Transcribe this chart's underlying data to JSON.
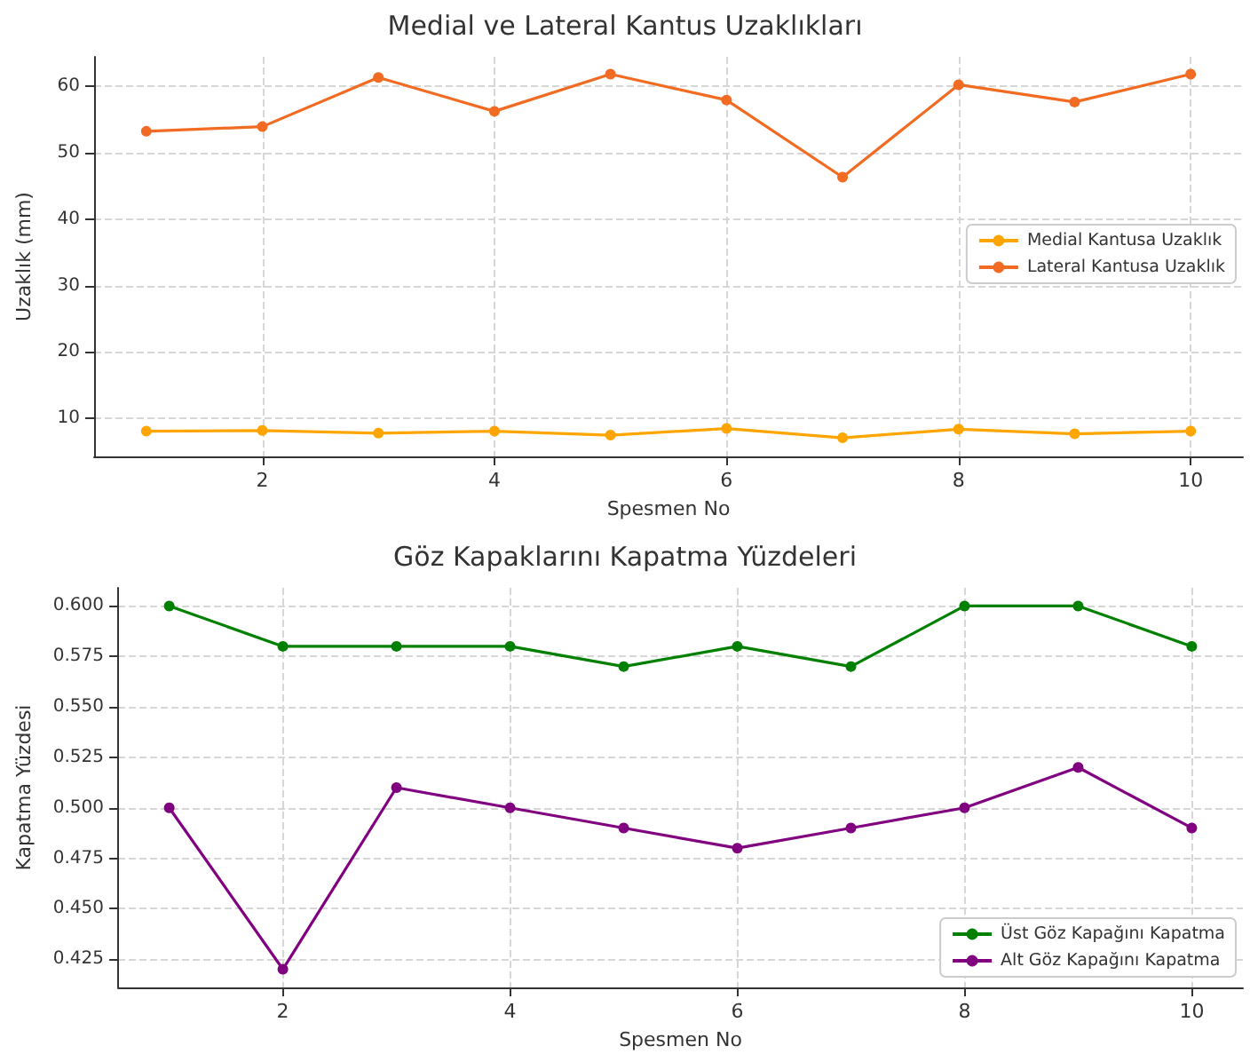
{
  "chart_data": [
    {
      "type": "line",
      "title": "Medial ve Lateral Kantus Uzaklıkları",
      "xlabel": "Spesmen No",
      "ylabel": "Uzaklık (mm)",
      "x": [
        1,
        2,
        3,
        4,
        5,
        6,
        7,
        8,
        9,
        10
      ],
      "series": [
        {
          "name": "Medial Kantusa Uzaklık",
          "color": "#ffa500",
          "values": [
            8.1,
            8.2,
            7.8,
            8.1,
            7.5,
            8.5,
            7.1,
            8.4,
            7.7,
            8.1
          ]
        },
        {
          "name": "Lateral Kantusa Uzaklık",
          "color": "#f26b22",
          "values": [
            53.2,
            53.9,
            61.3,
            56.2,
            61.8,
            57.9,
            46.3,
            60.2,
            57.6,
            61.8
          ]
        }
      ],
      "xlim": [
        0.55,
        10.45
      ],
      "xticks": [
        2,
        4,
        6,
        8,
        10
      ],
      "ylim": [
        4.3,
        64.4
      ],
      "yticks": [
        10,
        20,
        30,
        40,
        50,
        60
      ],
      "grid": true,
      "legend": "right",
      "marker": "circle",
      "line_style": "solid"
    },
    {
      "type": "line",
      "title": "Göz Kapaklarını Kapatma Yüzdeleri",
      "xlabel": "Spesmen No",
      "ylabel": "Kapatma Yüzdesi",
      "x": [
        1,
        2,
        3,
        4,
        5,
        6,
        7,
        8,
        9,
        10
      ],
      "series": [
        {
          "name": "Üst Göz Kapağını Kapatma",
          "color": "#008000",
          "values": [
            0.6,
            0.58,
            0.58,
            0.58,
            0.57,
            0.58,
            0.57,
            0.6,
            0.6,
            0.58
          ]
        },
        {
          "name": "Alt Göz Kapağını Kapatma",
          "color": "#800080",
          "values": [
            0.5,
            0.42,
            0.51,
            0.5,
            0.49,
            0.48,
            0.49,
            0.5,
            0.52,
            0.49
          ]
        }
      ],
      "xlim": [
        0.55,
        10.45
      ],
      "xticks": [
        2,
        4,
        6,
        8,
        10
      ],
      "ylim": [
        0.411,
        0.609
      ],
      "yticks": [
        {
          "value": 0.425,
          "label": "0.425"
        },
        {
          "value": 0.45,
          "label": "0.450"
        },
        {
          "value": 0.475,
          "label": "0.475"
        },
        {
          "value": 0.5,
          "label": "0.500"
        },
        {
          "value": 0.525,
          "label": "0.525"
        },
        {
          "value": 0.55,
          "label": "0.550"
        },
        {
          "value": 0.575,
          "label": "0.575"
        },
        {
          "value": 0.6,
          "label": "0.600"
        }
      ],
      "grid": true,
      "legend": "bottom right",
      "marker": "circle",
      "line_style": "solid"
    }
  ]
}
